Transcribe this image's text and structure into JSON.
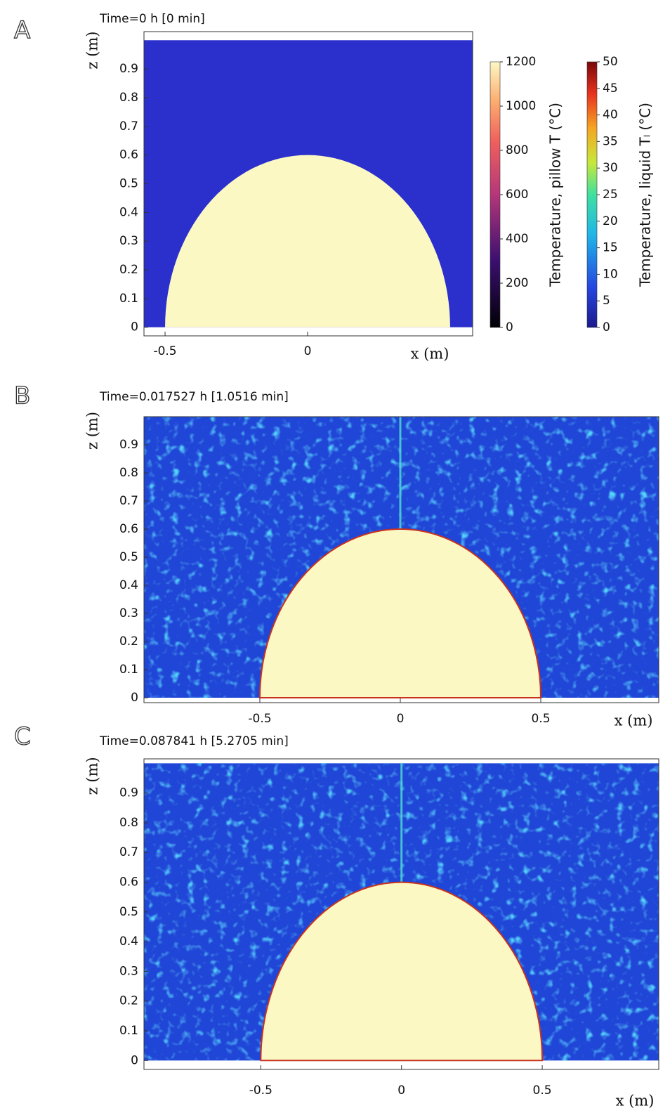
{
  "chart_data": [
    {
      "type": "field",
      "panel_label": "A",
      "title": "Time=0 h [0 min]",
      "xlabel": "x (m)",
      "ylabel": "z (m)",
      "xlim": [
        -0.574,
        0.579
      ],
      "ylim": [
        -0.03,
        1.03
      ],
      "xticks": [
        -0.5,
        0
      ],
      "yticks": [
        0,
        0.1,
        0.2,
        0.3,
        0.4,
        0.5,
        0.6,
        0.7,
        0.8,
        0.9
      ],
      "colorbars": [
        {
          "label": "Temperature, pillow T (°C)",
          "lim": [
            0,
            1200
          ],
          "ticks": [
            0,
            200,
            400,
            600,
            800,
            1000,
            1200
          ]
        },
        {
          "label": "Temperature, liquid Tₗ (°C)",
          "lim": [
            0,
            50
          ],
          "ticks": [
            0,
            5,
            10,
            15,
            20,
            25,
            30,
            35,
            40,
            45,
            50
          ]
        }
      ]
    },
    {
      "type": "field",
      "panel_label": "B",
      "title": "Time=0.017527 h [1.0516 min]",
      "xlabel": "x (m)",
      "ylabel": "z (m)",
      "xlim": [
        -0.9125,
        0.92
      ],
      "ylim": [
        -0.0175,
        1.0
      ],
      "xticks": [
        -0.5,
        0,
        0.5
      ],
      "yticks": [
        0,
        0.1,
        0.2,
        0.3,
        0.4,
        0.5,
        0.6,
        0.7,
        0.8,
        0.9
      ]
    },
    {
      "type": "field",
      "panel_label": "C",
      "title": "Time=0.087841 h [5.2705 min]",
      "xlabel": "x (m)",
      "ylabel": "z (m)",
      "xlim": [
        -0.915,
        0.914
      ],
      "ylim": [
        -0.03,
        1.015
      ],
      "xticks": [
        -0.5,
        0,
        0.5
      ],
      "yticks": [
        0,
        0.1,
        0.2,
        0.3,
        0.4,
        0.5,
        0.6,
        0.7,
        0.8,
        0.9
      ]
    }
  ]
}
